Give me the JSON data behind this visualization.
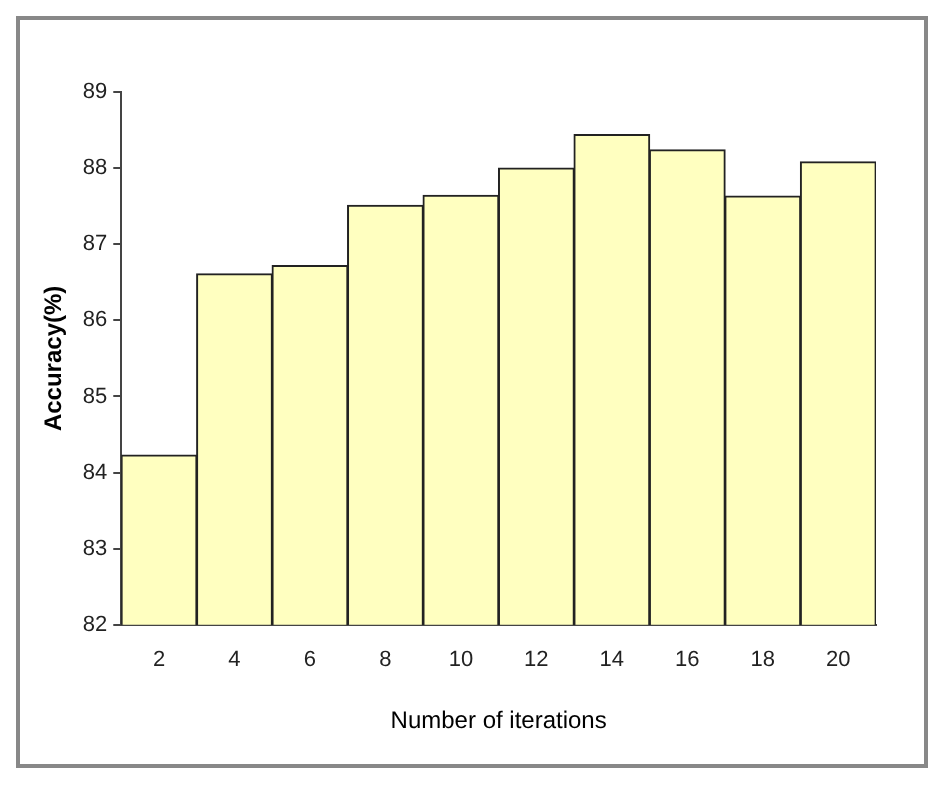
{
  "chart_data": {
    "type": "bar",
    "xlabel": "Number of iterations",
    "ylabel": "Accuracy(%)",
    "categories": [
      "2",
      "4",
      "6",
      "8",
      "10",
      "12",
      "14",
      "16",
      "18",
      "20"
    ],
    "values": [
      84.23,
      86.61,
      86.72,
      87.51,
      87.64,
      88.0,
      88.44,
      88.24,
      87.63,
      88.08
    ],
    "color": "#ffffc0",
    "ylim": [
      82,
      89
    ],
    "yticks": [
      82,
      83,
      84,
      85,
      86,
      87,
      88,
      89
    ],
    "grid": false,
    "legend": false
  }
}
